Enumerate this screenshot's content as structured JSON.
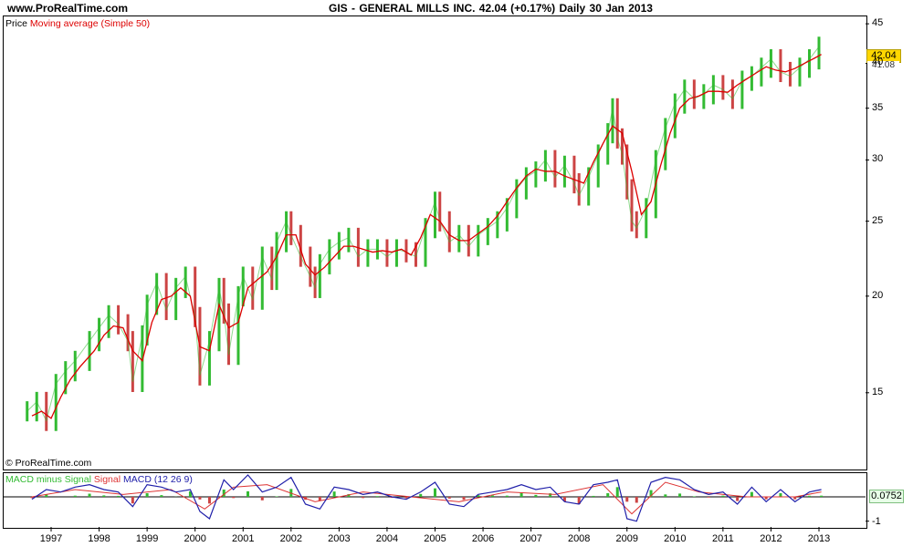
{
  "header": {
    "site": "www.ProRealTime.com",
    "title": "GIS - GENERAL MILLS INC.    42.04 (+0.17%)    Daily  30 Jan 2013"
  },
  "price_panel": {
    "legend_price": "Price",
    "legend_ma": "Moving average (Simple 50)",
    "watermark": "© ProRealTime.com",
    "last_price": "42.04",
    "ma_value": "41.08"
  },
  "macd_panel": {
    "legend_hist": "MACD minus Signal",
    "legend_signal": "Signal",
    "legend_macd": "MACD",
    "legend_params": "(12 26 9)",
    "last_value": "0.0752",
    "ytick_low": "-1"
  },
  "colors": {
    "up": "#33bb33",
    "down": "#cc4444",
    "ma": "#dd0000",
    "macd": "#2020aa",
    "signal": "#dd3333",
    "price_tag": "#ffd700"
  },
  "chart_data": [
    {
      "type": "line",
      "title": "",
      "scale": "log",
      "ylim": [
        12,
        46
      ],
      "yticks": [
        15,
        20,
        25,
        30,
        35,
        40,
        45
      ],
      "xticks": [
        "1997",
        "1998",
        "1999",
        "2000",
        "2001",
        "2002",
        "2003",
        "2004",
        "2005",
        "2006",
        "2007",
        "2008",
        "2009",
        "2010",
        "2011",
        "2012",
        "2013"
      ],
      "series": [
        {
          "name": "Price",
          "x": [
            1996.5,
            1996.7,
            1996.9,
            1997.1,
            1997.3,
            1997.5,
            1997.8,
            1998.0,
            1998.2,
            1998.4,
            1998.6,
            1998.7,
            1998.9,
            1999.0,
            1999.2,
            1999.4,
            1999.6,
            1999.8,
            2000.0,
            2000.1,
            2000.3,
            2000.5,
            2000.6,
            2000.7,
            2000.9,
            2001.0,
            2001.2,
            2001.4,
            2001.6,
            2001.7,
            2001.9,
            2002.0,
            2002.2,
            2002.4,
            2002.5,
            2002.6,
            2002.8,
            2003.0,
            2003.2,
            2003.4,
            2003.6,
            2003.8,
            2004.0,
            2004.2,
            2004.4,
            2004.6,
            2004.8,
            2005.0,
            2005.1,
            2005.3,
            2005.5,
            2005.7,
            2005.9,
            2006.1,
            2006.3,
            2006.5,
            2006.7,
            2006.9,
            2007.1,
            2007.3,
            2007.5,
            2007.7,
            2007.9,
            2008.0,
            2008.2,
            2008.4,
            2008.6,
            2008.7,
            2008.8,
            2008.9,
            2009.0,
            2009.1,
            2009.2,
            2009.4,
            2009.6,
            2009.8,
            2010.0,
            2010.2,
            2010.4,
            2010.6,
            2010.8,
            2011.0,
            2011.2,
            2011.4,
            2011.6,
            2011.8,
            2012.0,
            2012.2,
            2012.4,
            2012.6,
            2012.8,
            2013.0
          ],
          "values": [
            14.2,
            14.6,
            13.8,
            15.4,
            16.0,
            16.5,
            17.5,
            18.2,
            18.9,
            18.4,
            17.5,
            15.5,
            17.8,
            19.5,
            20.8,
            19.2,
            20.5,
            21.2,
            18.8,
            15.8,
            17.5,
            20.5,
            19.0,
            16.8,
            20.0,
            21.2,
            19.8,
            22.5,
            21.0,
            23.5,
            25.0,
            24.0,
            22.5,
            21.2,
            20.5,
            22.0,
            23.0,
            23.5,
            23.8,
            22.5,
            23.0,
            23.0,
            22.5,
            23.0,
            22.8,
            22.5,
            24.5,
            26.5,
            25.0,
            23.5,
            24.0,
            23.2,
            24.0,
            24.5,
            25.0,
            26.0,
            27.5,
            28.5,
            29.0,
            30.0,
            28.5,
            29.5,
            28.0,
            27.0,
            28.5,
            30.5,
            32.5,
            35.0,
            32.0,
            30.5,
            27.5,
            25.0,
            24.5,
            26.0,
            30.0,
            33.0,
            35.5,
            37.0,
            36.0,
            36.5,
            37.5,
            37.0,
            36.0,
            38.0,
            38.5,
            39.5,
            40.5,
            39.0,
            38.5,
            39.5,
            40.5,
            42.04
          ]
        },
        {
          "name": "Moving average (Simple 50)",
          "x": [
            1996.6,
            1996.8,
            1997.0,
            1997.2,
            1997.4,
            1997.6,
            1997.9,
            1998.1,
            1998.3,
            1998.5,
            1998.7,
            1998.9,
            1999.1,
            1999.3,
            1999.5,
            1999.7,
            1999.9,
            2000.1,
            2000.3,
            2000.5,
            2000.7,
            2000.9,
            2001.1,
            2001.3,
            2001.5,
            2001.7,
            2001.9,
            2002.1,
            2002.3,
            2002.5,
            2002.7,
            2002.9,
            2003.1,
            2003.3,
            2003.5,
            2003.7,
            2003.9,
            2004.1,
            2004.3,
            2004.5,
            2004.7,
            2004.9,
            2005.1,
            2005.3,
            2005.5,
            2005.7,
            2005.9,
            2006.1,
            2006.3,
            2006.5,
            2006.7,
            2006.9,
            2007.1,
            2007.3,
            2007.5,
            2007.7,
            2007.9,
            2008.1,
            2008.3,
            2008.5,
            2008.7,
            2008.9,
            2009.1,
            2009.3,
            2009.5,
            2009.7,
            2009.9,
            2010.1,
            2010.3,
            2010.5,
            2010.7,
            2010.9,
            2011.1,
            2011.3,
            2011.5,
            2011.7,
            2011.9,
            2012.1,
            2012.3,
            2012.5,
            2012.7,
            2012.9,
            2013.05
          ],
          "values": [
            14.0,
            14.2,
            13.9,
            14.8,
            15.6,
            16.2,
            17.0,
            17.8,
            18.3,
            18.2,
            17.0,
            16.5,
            18.5,
            19.8,
            20.0,
            20.5,
            20.0,
            17.2,
            17.0,
            19.5,
            18.2,
            18.5,
            20.5,
            21.0,
            21.5,
            22.5,
            24.0,
            24.0,
            22.0,
            21.3,
            21.8,
            22.5,
            23.2,
            23.2,
            23.0,
            22.8,
            22.9,
            22.8,
            23.0,
            22.6,
            23.8,
            25.5,
            25.0,
            24.0,
            23.6,
            23.6,
            24.1,
            24.6,
            25.4,
            26.5,
            27.6,
            28.6,
            29.2,
            29.0,
            29.0,
            28.6,
            28.3,
            28.0,
            29.8,
            31.5,
            33.2,
            32.5,
            29.0,
            25.5,
            26.5,
            29.5,
            32.5,
            35.0,
            36.0,
            36.3,
            36.8,
            36.8,
            36.7,
            37.5,
            38.2,
            38.9,
            39.6,
            39.2,
            39.0,
            39.4,
            40.0,
            40.6,
            41.08
          ]
        }
      ]
    },
    {
      "type": "bar",
      "title": "",
      "ylim": [
        -1.2,
        1.2
      ],
      "yticks": [
        -1
      ],
      "series": [
        {
          "name": "MACD",
          "x": [
            1996.6,
            1996.9,
            1997.2,
            1997.5,
            1997.8,
            1998.1,
            1998.4,
            1998.7,
            1999.0,
            1999.3,
            1999.6,
            1999.9,
            2000.1,
            2000.3,
            2000.6,
            2000.8,
            2001.1,
            2001.4,
            2001.7,
            2002.0,
            2002.3,
            2002.6,
            2002.9,
            2003.2,
            2003.5,
            2003.8,
            2004.1,
            2004.4,
            2004.7,
            2005.0,
            2005.3,
            2005.6,
            2005.9,
            2006.2,
            2006.5,
            2006.8,
            2007.1,
            2007.4,
            2007.7,
            2008.0,
            2008.3,
            2008.6,
            2008.8,
            2009.0,
            2009.2,
            2009.5,
            2009.8,
            2010.1,
            2010.4,
            2010.7,
            2011.0,
            2011.3,
            2011.6,
            2011.9,
            2012.2,
            2012.5,
            2012.8,
            2013.05
          ],
          "values": [
            -0.1,
            0.3,
            0.2,
            0.4,
            0.5,
            0.3,
            0.2,
            -0.4,
            0.5,
            0.4,
            0.2,
            0.3,
            -0.6,
            -0.9,
            0.7,
            0.3,
            0.9,
            0.2,
            0.4,
            0.8,
            -0.3,
            -0.5,
            0.4,
            0.3,
            0.1,
            0.2,
            0.0,
            -0.1,
            0.2,
            0.6,
            -0.3,
            -0.4,
            0.1,
            0.2,
            0.3,
            0.5,
            0.3,
            0.4,
            -0.2,
            -0.3,
            0.5,
            0.6,
            0.7,
            -0.9,
            -1.0,
            0.6,
            0.8,
            0.7,
            0.3,
            0.1,
            0.2,
            -0.3,
            0.4,
            -0.2,
            0.3,
            -0.2,
            0.2,
            0.3
          ]
        },
        {
          "name": "Signal",
          "x": [
            1996.6,
            1997.5,
            1998.5,
            1999.5,
            2000.2,
            2000.8,
            2001.5,
            2002.5,
            2003.5,
            2004.5,
            2005.5,
            2006.5,
            2007.5,
            2008.5,
            2009.1,
            2009.8,
            2010.5,
            2011.5,
            2012.5,
            2013.05
          ],
          "values": [
            0.0,
            0.3,
            0.1,
            0.3,
            -0.5,
            0.4,
            0.5,
            -0.2,
            0.2,
            0.0,
            -0.2,
            0.2,
            0.1,
            0.5,
            -0.7,
            0.6,
            0.2,
            0.0,
            0.0,
            0.2
          ]
        }
      ]
    }
  ]
}
